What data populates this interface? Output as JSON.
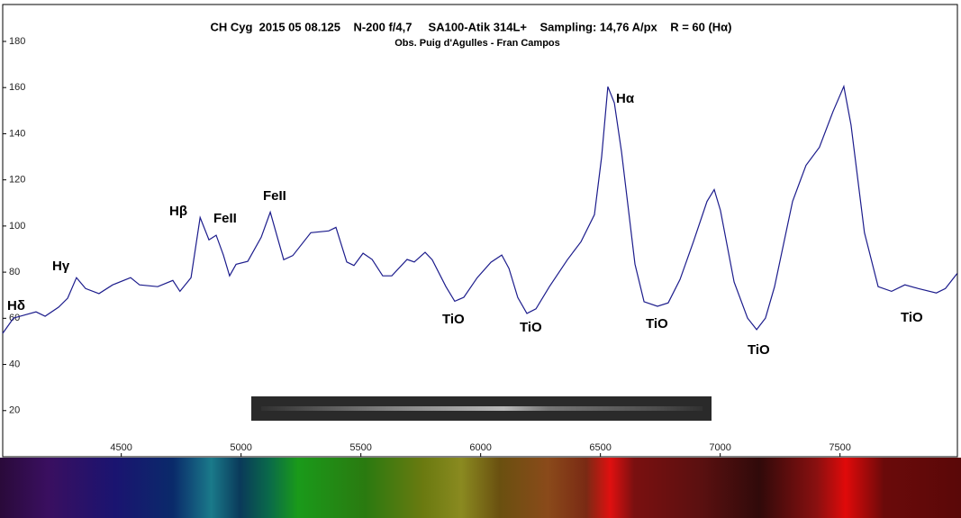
{
  "chart_data": {
    "type": "line",
    "title": "CH Cyg  2015 05 08.125    N-200 f/4,7     SA100-Atik 314L+    Sampling: 14,76 A/px    R = 60 (Hα)",
    "subtitle": "Obs. Puig d'Agulles - Fran Campos",
    "x": [
      4005,
      4050,
      4144,
      4182,
      4238,
      4276,
      4313,
      4351,
      4407,
      4464,
      4539,
      4576,
      4652,
      4715,
      4745,
      4791,
      4829,
      4866,
      4896,
      4926,
      4952,
      4979,
      5028,
      5084,
      5122,
      5178,
      5216,
      5291,
      5366,
      5396,
      5441,
      5471,
      5509,
      5547,
      5591,
      5629,
      5693,
      5723,
      5768,
      5798,
      5855,
      5892,
      5930,
      5986,
      6043,
      6088,
      6118,
      6155,
      6193,
      6231,
      6287,
      6362,
      6419,
      6475,
      6505,
      6531,
      6558,
      6588,
      6644,
      6682,
      6738,
      6783,
      6832,
      6888,
      6945,
      6975,
      7001,
      7058,
      7114,
      7152,
      7189,
      7227,
      7302,
      7358,
      7414,
      7471,
      7516,
      7546,
      7602,
      7659,
      7715,
      7771,
      7827,
      7902,
      7940,
      7989
    ],
    "series": [
      {
        "color": "#1c1c8c",
        "values": [
          53.5,
          60.1,
          62.8,
          60.9,
          64.8,
          68.7,
          77.6,
          72.9,
          70.7,
          74.5,
          77.6,
          74.5,
          73.7,
          76.4,
          71.7,
          77.6,
          103.7,
          94.0,
          96.0,
          87.4,
          78.4,
          83.4,
          84.7,
          95.1,
          106.0,
          85.4,
          87.2,
          97.1,
          97.9,
          99.4,
          84.4,
          82.9,
          88.2,
          85.5,
          78.4,
          78.4,
          85.5,
          84.4,
          88.6,
          85.4,
          73.7,
          67.4,
          69.1,
          77.6,
          84.3,
          87.4,
          81.6,
          69.0,
          62.1,
          64.1,
          73.7,
          85.4,
          93.2,
          104.9,
          130,
          160.4,
          153.4,
          132.1,
          83.5,
          67.2,
          65.2,
          66.7,
          76.8,
          93.2,
          110.7,
          115.8,
          106.8,
          75.7,
          60.1,
          55.1,
          60.1,
          73.7,
          110.7,
          126.3,
          134.1,
          149.6,
          160.5,
          143.8,
          97.1,
          73.7,
          71.7,
          74.5,
          72.9,
          71.0,
          72.9,
          79.4
        ]
      }
    ],
    "xlim": [
      4005,
      7990
    ],
    "ylim": [
      0,
      196
    ],
    "xticks": [
      4500,
      5000,
      5500,
      6000,
      6500,
      7000,
      7500
    ],
    "yticks": [
      20,
      40,
      60,
      80,
      100,
      120,
      140,
      160,
      180
    ],
    "annotations": [
      "Hδ",
      "Hγ",
      "Hβ",
      "FeII",
      "FeII",
      "Hα",
      "TiO",
      "TiO",
      "TiO",
      "TiO",
      "TiO"
    ]
  }
}
